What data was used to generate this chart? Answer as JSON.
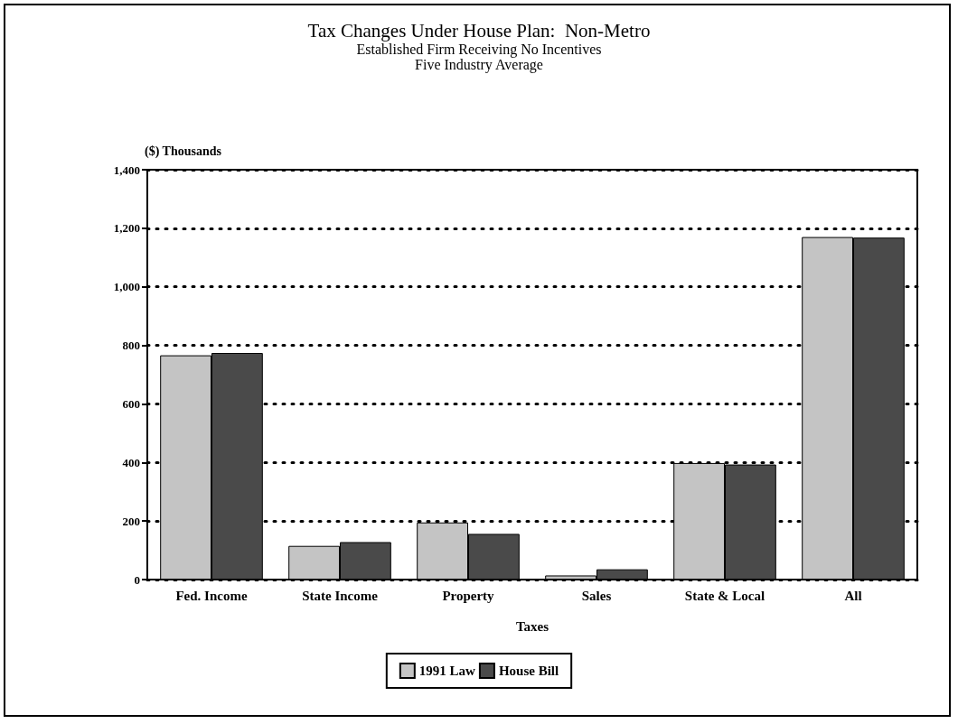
{
  "chart_data": {
    "type": "bar",
    "title": "Tax Changes Under House Plan:  Non-Metro",
    "subtitle": "Established Firm Receiving No Incentives\nFive Industry Average",
    "xlabel": "Taxes",
    "ylabel": "($) Thousands",
    "categories": [
      "Fed. Income",
      "State Income",
      "Property",
      "Sales",
      "State & Local",
      "All"
    ],
    "series": [
      {
        "name": "1991 Law",
        "color": "#c4c4c4",
        "values": [
          766,
          115,
          195,
          14,
          398,
          1170
        ]
      },
      {
        "name": "House Bill",
        "color": "#4a4a4a",
        "values": [
          774,
          128,
          156,
          35,
          393,
          1168
        ]
      }
    ],
    "ylim": [
      0,
      1400
    ],
    "yticks": [
      0,
      200,
      400,
      600,
      800,
      {
        "value": 1000,
        "label": "1,000"
      },
      {
        "value": 1200,
        "label": "1,200"
      },
      {
        "value": 1400,
        "label": "1,400"
      }
    ],
    "grid": "y",
    "legend": "bottom"
  }
}
